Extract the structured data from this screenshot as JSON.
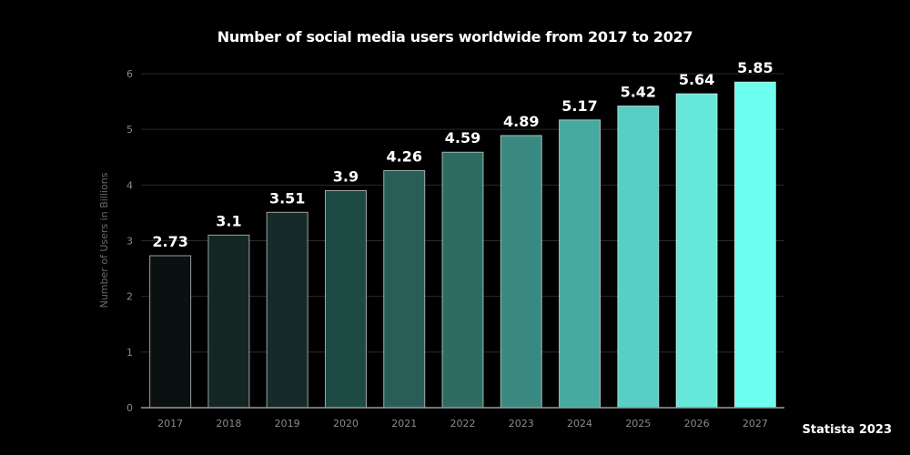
{
  "chart_data": {
    "type": "bar",
    "title": "Number of social media users worldwide from 2017 to 2027",
    "xlabel": "",
    "ylabel": "Number of Users in Billions",
    "categories": [
      "2017",
      "2018",
      "2019",
      "2020",
      "2021",
      "2022",
      "2023",
      "2024",
      "2025",
      "2026",
      "2027"
    ],
    "values": [
      2.73,
      3.1,
      3.51,
      3.9,
      4.26,
      4.59,
      4.89,
      5.17,
      5.42,
      5.64,
      5.85
    ],
    "data_labels": [
      "2.73",
      "3.1",
      "3.51",
      "3.9",
      "4.26",
      "4.59",
      "4.89",
      "5.17",
      "5.42",
      "5.64",
      "5.85"
    ],
    "ylim": [
      0,
      6
    ],
    "yticks": [
      "0",
      "1",
      "2",
      "3",
      "4",
      "5",
      "6"
    ],
    "grid": true,
    "colors": [
      "#0b1010",
      "#132624",
      "#152a29",
      "#1e4a44",
      "#285e57",
      "#2d6b63",
      "#3a8980",
      "#47aaa0",
      "#57cfc4",
      "#65e8da",
      "#6ffff0"
    ],
    "source": "Statista 2023"
  }
}
